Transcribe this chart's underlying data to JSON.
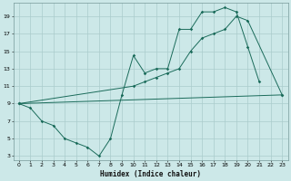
{
  "xlabel": "Humidex (Indice chaleur)",
  "bg_color": "#cce8e8",
  "grid_color": "#aacccc",
  "line_color": "#1a6b5a",
  "xlim": [
    -0.5,
    23.5
  ],
  "ylim": [
    2.5,
    20.5
  ],
  "xticks": [
    0,
    1,
    2,
    3,
    4,
    5,
    6,
    7,
    8,
    9,
    10,
    11,
    12,
    13,
    14,
    15,
    16,
    17,
    18,
    19,
    20,
    21,
    22,
    23
  ],
  "yticks": [
    3,
    5,
    7,
    9,
    11,
    13,
    15,
    17,
    19
  ],
  "line1_x": [
    0,
    1,
    2,
    3,
    4,
    5,
    6,
    7,
    8,
    9,
    10,
    11,
    12,
    13,
    14,
    15,
    16,
    17,
    18,
    19,
    20,
    21
  ],
  "line1_y": [
    9,
    8.5,
    7,
    6.5,
    5,
    4.5,
    4,
    3,
    5,
    10,
    14.5,
    12.5,
    13,
    13,
    17.5,
    17.5,
    19.5,
    19.5,
    20,
    19.5,
    15.5,
    11.5
  ],
  "line2_x": [
    0,
    10,
    11,
    12,
    13,
    14,
    15,
    16,
    17,
    18,
    19,
    20,
    23
  ],
  "line2_y": [
    9,
    11,
    11.5,
    12,
    12.5,
    13,
    15,
    16.5,
    17,
    17.5,
    19,
    18.5,
    10
  ],
  "line3_x": [
    0,
    23
  ],
  "line3_y": [
    9,
    10
  ]
}
